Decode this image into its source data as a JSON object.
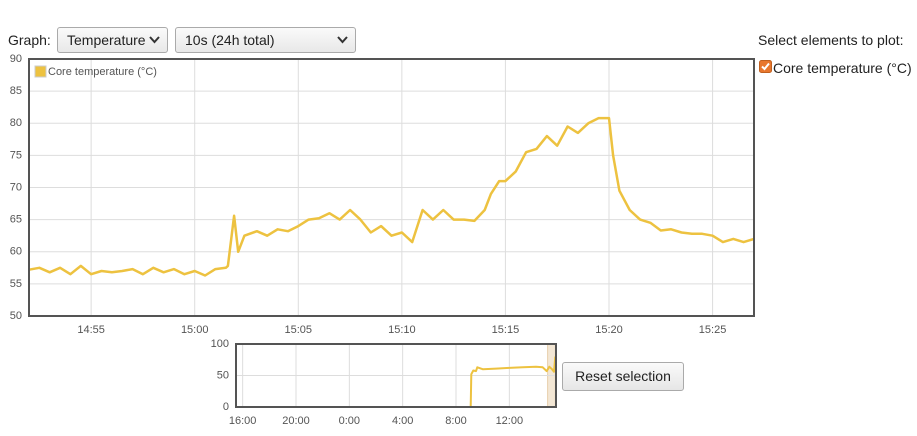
{
  "controls": {
    "graph_label": "Graph:",
    "graph_select": "Temperature",
    "range_select": "10s (24h total)",
    "elements_title": "Select elements to plot:",
    "element": "Core temperature (°C)",
    "reset_button": "Reset selection"
  },
  "chart_data": [
    {
      "type": "line",
      "grid": true,
      "legend": "top-left",
      "x": [
        892,
        892.5,
        893,
        893.5,
        894,
        894.5,
        895,
        895.5,
        896,
        896.5,
        897,
        897.5,
        898,
        898.5,
        899,
        899.5,
        900,
        900.5,
        901,
        901.5,
        901.6,
        901.9,
        902.1,
        902.4,
        903,
        903.5,
        904,
        904.5,
        905,
        905.5,
        906,
        906.5,
        907,
        907.5,
        908,
        908.5,
        909,
        909.5,
        910,
        910.5,
        911,
        911.5,
        912,
        912.5,
        913,
        913.5,
        914,
        914.3,
        914.7,
        915,
        915.5,
        916,
        916.5,
        917,
        917.5,
        918,
        918.5,
        919,
        919.5,
        920,
        920.2,
        920.5,
        921,
        921.5,
        922,
        922.5,
        923,
        923.5,
        924,
        924.5,
        925,
        925.5,
        926,
        926.5,
        927
      ],
      "series": [
        {
          "name": "Core temperature (°C)",
          "color": "#edc240",
          "values": [
            57.2,
            57.5,
            56.8,
            57.5,
            56.5,
            57.8,
            56.5,
            57,
            56.8,
            57,
            57.3,
            56.5,
            57.5,
            56.8,
            57.3,
            56.5,
            57,
            56.3,
            57.3,
            57.5,
            57.8,
            65.6,
            60,
            62.5,
            63.2,
            62.5,
            63.5,
            63.2,
            64,
            65,
            65.2,
            66,
            65,
            66.5,
            65,
            63,
            64,
            62.5,
            63,
            61.5,
            66.5,
            65,
            66.5,
            65,
            65,
            64.8,
            66.5,
            69,
            71,
            71,
            72.5,
            75.5,
            76,
            78,
            76.5,
            79.5,
            78.5,
            80,
            80.8,
            80.8,
            75,
            69.5,
            66.5,
            65,
            64.5,
            63.3,
            63.5,
            63,
            62.8,
            62.8,
            62.5,
            61.5,
            62,
            61.5,
            62
          ]
        }
      ],
      "xlim": [
        892,
        927
      ],
      "xticks": [
        {
          "value": 895,
          "label": "14:55"
        },
        {
          "value": 900,
          "label": "15:00"
        },
        {
          "value": 905,
          "label": "15:05"
        },
        {
          "value": 910,
          "label": "15:10"
        },
        {
          "value": 915,
          "label": "15:15"
        },
        {
          "value": 920,
          "label": "15:20"
        },
        {
          "value": 925,
          "label": "15:25"
        }
      ],
      "ylim": [
        50,
        90
      ],
      "yticks": [
        50,
        55,
        60,
        65,
        70,
        75,
        80,
        85,
        90
      ]
    },
    {
      "type": "line",
      "grid": true,
      "selection": [
        38.87,
        39.45
      ],
      "x": [
        15.5,
        33.1,
        33.15,
        33.3,
        33.5,
        33.6,
        34,
        35,
        36,
        37,
        38,
        38.5,
        38.8,
        39,
        39.2,
        39.35,
        39.45
      ],
      "series": [
        {
          "color": "#edc240",
          "values": [
            0,
            0,
            52,
            58,
            57,
            63,
            60,
            61,
            62,
            63,
            64,
            63,
            57,
            64,
            60,
            56,
            80
          ]
        }
      ],
      "xlim": [
        15.5,
        39.5
      ],
      "xticks": [
        {
          "value": 16,
          "label": "16:00"
        },
        {
          "value": 20,
          "label": "20:00"
        },
        {
          "value": 24,
          "label": "0:00"
        },
        {
          "value": 28,
          "label": "4:00"
        },
        {
          "value": 32,
          "label": "8:00"
        },
        {
          "value": 36,
          "label": "12:00"
        }
      ],
      "ylim": [
        0,
        100
      ],
      "yticks": [
        0,
        50,
        100
      ]
    }
  ]
}
